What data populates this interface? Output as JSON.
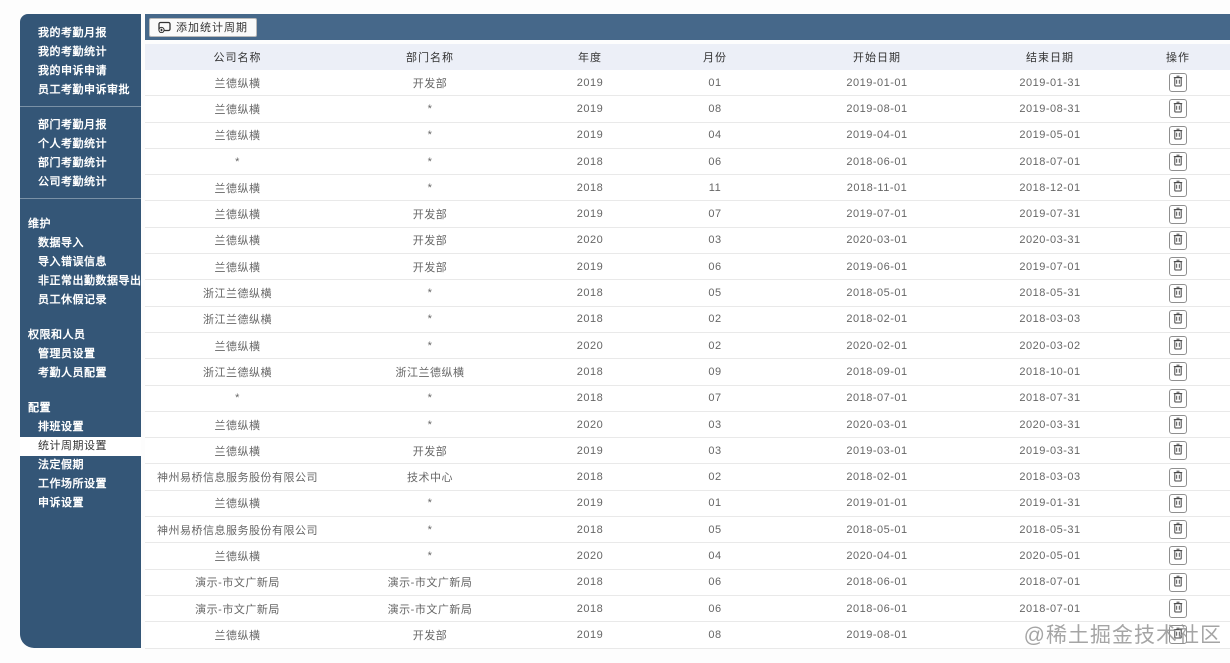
{
  "colors": {
    "sidebar_bg": "#345677",
    "topbar_bg": "#46688A",
    "table_header_bg": "#ECEFF7",
    "active_item_bg": "#FFFFFF",
    "row_border": "#E9E9E9"
  },
  "sidebar": {
    "items": [
      {
        "kind": "item",
        "label": "我的考勤月报"
      },
      {
        "kind": "item",
        "label": "我的考勤统计"
      },
      {
        "kind": "item",
        "label": "我的申诉申请"
      },
      {
        "kind": "item",
        "label": "员工考勤申诉审批"
      },
      {
        "kind": "divider"
      },
      {
        "kind": "item",
        "label": "部门考勤月报"
      },
      {
        "kind": "item",
        "label": "个人考勤统计"
      },
      {
        "kind": "item",
        "label": "部门考勤统计"
      },
      {
        "kind": "item",
        "label": "公司考勤统计"
      },
      {
        "kind": "divider"
      },
      {
        "kind": "section",
        "label": "维护"
      },
      {
        "kind": "item",
        "label": "数据导入"
      },
      {
        "kind": "item",
        "label": "导入错误信息"
      },
      {
        "kind": "item",
        "label": "非正常出勤数据导出"
      },
      {
        "kind": "item",
        "label": "员工休假记录"
      },
      {
        "kind": "section",
        "label": "权限和人员"
      },
      {
        "kind": "item",
        "label": "管理员设置"
      },
      {
        "kind": "item",
        "label": "考勤人员配置"
      },
      {
        "kind": "section",
        "label": "配置"
      },
      {
        "kind": "item",
        "label": "排班设置"
      },
      {
        "kind": "item",
        "label": "统计周期设置",
        "active": true
      },
      {
        "kind": "item",
        "label": "法定假期"
      },
      {
        "kind": "item",
        "label": "工作场所设置"
      },
      {
        "kind": "item",
        "label": "申诉设置"
      }
    ]
  },
  "toolbar": {
    "add_button_label": "添加统计周期",
    "add_button_icon": "add-period-icon"
  },
  "table": {
    "columns": [
      "公司名称",
      "部门名称",
      "年度",
      "月份",
      "开始日期",
      "结束日期",
      "操作"
    ],
    "delete_icon": "trash-icon",
    "rows": [
      {
        "company": "兰德纵横",
        "department": "开发部",
        "year": "2019",
        "month": "01",
        "start_date": "2019-01-01",
        "end_date": "2019-01-31"
      },
      {
        "company": "兰德纵横",
        "department": "*",
        "year": "2019",
        "month": "08",
        "start_date": "2019-08-01",
        "end_date": "2019-08-31"
      },
      {
        "company": "兰德纵横",
        "department": "*",
        "year": "2019",
        "month": "04",
        "start_date": "2019-04-01",
        "end_date": "2019-05-01"
      },
      {
        "company": "*",
        "department": "*",
        "year": "2018",
        "month": "06",
        "start_date": "2018-06-01",
        "end_date": "2018-07-01"
      },
      {
        "company": "兰德纵横",
        "department": "*",
        "year": "2018",
        "month": "11",
        "start_date": "2018-11-01",
        "end_date": "2018-12-01"
      },
      {
        "company": "兰德纵横",
        "department": "开发部",
        "year": "2019",
        "month": "07",
        "start_date": "2019-07-01",
        "end_date": "2019-07-31"
      },
      {
        "company": "兰德纵横",
        "department": "开发部",
        "year": "2020",
        "month": "03",
        "start_date": "2020-03-01",
        "end_date": "2020-03-31"
      },
      {
        "company": "兰德纵横",
        "department": "开发部",
        "year": "2019",
        "month": "06",
        "start_date": "2019-06-01",
        "end_date": "2019-07-01"
      },
      {
        "company": "浙江兰德纵横",
        "department": "*",
        "year": "2018",
        "month": "05",
        "start_date": "2018-05-01",
        "end_date": "2018-05-31"
      },
      {
        "company": "浙江兰德纵横",
        "department": "*",
        "year": "2018",
        "month": "02",
        "start_date": "2018-02-01",
        "end_date": "2018-03-03"
      },
      {
        "company": "兰德纵横",
        "department": "*",
        "year": "2020",
        "month": "02",
        "start_date": "2020-02-01",
        "end_date": "2020-03-02"
      },
      {
        "company": "浙江兰德纵横",
        "department": "浙江兰德纵横",
        "year": "2018",
        "month": "09",
        "start_date": "2018-09-01",
        "end_date": "2018-10-01"
      },
      {
        "company": "*",
        "department": "*",
        "year": "2018",
        "month": "07",
        "start_date": "2018-07-01",
        "end_date": "2018-07-31"
      },
      {
        "company": "兰德纵横",
        "department": "*",
        "year": "2020",
        "month": "03",
        "start_date": "2020-03-01",
        "end_date": "2020-03-31"
      },
      {
        "company": "兰德纵横",
        "department": "开发部",
        "year": "2019",
        "month": "03",
        "start_date": "2019-03-01",
        "end_date": "2019-03-31"
      },
      {
        "company": "神州易桥信息服务股份有限公司",
        "department": "技术中心",
        "year": "2018",
        "month": "02",
        "start_date": "2018-02-01",
        "end_date": "2018-03-03"
      },
      {
        "company": "兰德纵横",
        "department": "*",
        "year": "2019",
        "month": "01",
        "start_date": "2019-01-01",
        "end_date": "2019-01-31"
      },
      {
        "company": "神州易桥信息服务股份有限公司",
        "department": "*",
        "year": "2018",
        "month": "05",
        "start_date": "2018-05-01",
        "end_date": "2018-05-31"
      },
      {
        "company": "兰德纵横",
        "department": "*",
        "year": "2020",
        "month": "04",
        "start_date": "2020-04-01",
        "end_date": "2020-05-01"
      },
      {
        "company": "演示-市文广新局",
        "department": "演示-市文广新局",
        "year": "2018",
        "month": "06",
        "start_date": "2018-06-01",
        "end_date": "2018-07-01"
      },
      {
        "company": "演示-市文广新局",
        "department": "演示-市文广新局",
        "year": "2018",
        "month": "06",
        "start_date": "2018-06-01",
        "end_date": "2018-07-01"
      },
      {
        "company": "兰德纵横",
        "department": "开发部",
        "year": "2019",
        "month": "08",
        "start_date": "2019-08-01",
        "end_date": ""
      }
    ]
  },
  "watermark": {
    "text": "@稀土掘金技术社区"
  }
}
